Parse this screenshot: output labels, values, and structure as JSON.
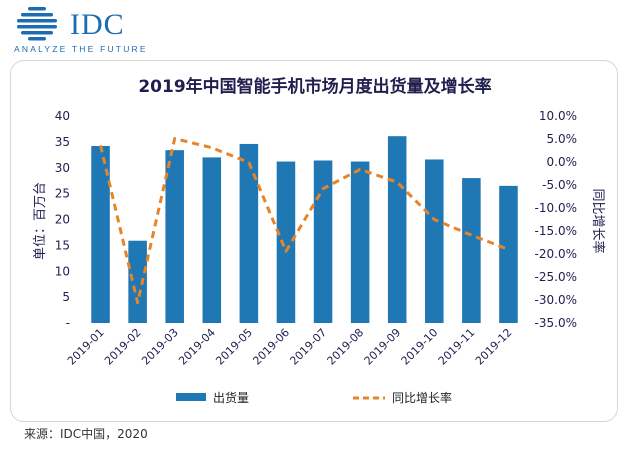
{
  "logo": {
    "brand": "IDC",
    "tagline": "ANALYZE THE FUTURE"
  },
  "source": "来源：IDC中国，2020",
  "colors": {
    "bar": "#1f77b4",
    "line": "#e6842a",
    "brand": "#1c6cb3",
    "title": "#1f1f4f"
  },
  "chart_data": {
    "type": "bar",
    "title": "2019年中国智能手机市场月度出货量及增长率",
    "ylabel": "单位：百万台",
    "y2label": "同比增长率",
    "categories": [
      "2019-01",
      "2019-02",
      "2019-03",
      "2019-04",
      "2019-05",
      "2019-06",
      "2019-07",
      "2019-08",
      "2019-09",
      "2019-10",
      "2019-11",
      "2019-12"
    ],
    "series": [
      {
        "name": "出货量",
        "type": "bar",
        "axis": "left",
        "values": [
          34.2,
          15.9,
          33.4,
          32.0,
          34.6,
          31.2,
          31.4,
          31.2,
          36.1,
          31.6,
          28.0,
          26.5
        ]
      },
      {
        "name": "同比增长率",
        "type": "line",
        "axis": "right",
        "style": "dashed",
        "unit": "%",
        "values": [
          3.6,
          -30.6,
          5.1,
          3.1,
          -0.1,
          -19.4,
          -5.8,
          -1.6,
          -4.4,
          -12.5,
          -15.9,
          -19.0
        ]
      }
    ],
    "ylim": [
      0,
      40
    ],
    "y2lim": [
      -35,
      10
    ],
    "yticks": [
      "-",
      "5",
      "10",
      "15",
      "20",
      "25",
      "30",
      "35",
      "40"
    ],
    "y2ticks": [
      "10.0%",
      "5.0%",
      "0.0%",
      "-5.0%",
      "-10.0%",
      "-15.0%",
      "-20.0%",
      "-25.0%",
      "-30.0%",
      "-35.0%"
    ],
    "legend": {
      "position": "bottom",
      "items": [
        "出货量",
        "同比增长率"
      ]
    },
    "grid": false
  }
}
